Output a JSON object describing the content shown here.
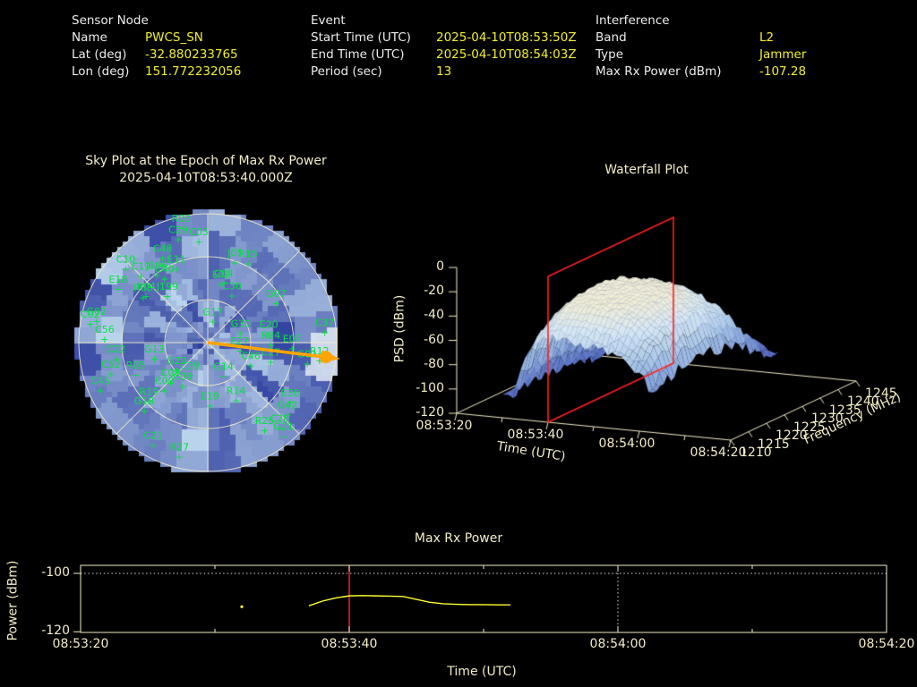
{
  "header": {
    "sensor": {
      "title": "Sensor Node",
      "rows": [
        {
          "label": "Name",
          "value": "PWCS_SN"
        },
        {
          "label": "Lat (deg)",
          "value": "-32.880233765"
        },
        {
          "label": "Lon (deg)",
          "value": "151.772232056"
        }
      ]
    },
    "event": {
      "title": "Event",
      "rows": [
        {
          "label": "Start Time (UTC)",
          "value": "2025-04-10T08:53:50Z"
        },
        {
          "label": "End Time (UTC)",
          "value": "2025-04-10T08:54:03Z"
        },
        {
          "label": "Period (sec)",
          "value": "13"
        }
      ]
    },
    "interference": {
      "title": "Interference",
      "rows": [
        {
          "label": "Band",
          "value": "L2"
        },
        {
          "label": "Type",
          "value": "Jammer"
        },
        {
          "label": "Max Rx Power (dBm)",
          "value": "-107.28"
        }
      ]
    }
  },
  "colors": {
    "background": "#000000",
    "header_label": "#ededed",
    "value_yellow": "#f0ef2d",
    "axis_cream": "#f2ecc6",
    "grid_dotted": "#dcdcdc",
    "satellite_green": "#00e43c",
    "arrow_orange": "#ffa500",
    "epoch_red": "#ff2020",
    "trace_yellow": "#ffff2e",
    "heat_dark_blue": "#27379b",
    "heat_light_blue": "#b9d3ec",
    "surface_low": "#3d51a8",
    "surface_high": "#f6f2e0"
  },
  "chart_data": [
    {
      "name": "sky_plot",
      "type": "heatmap",
      "title": "Sky Plot at the Epoch of Max Rx Power",
      "subtitle": "2025-04-10T08:53:40.000Z",
      "projection": "polar-skyplot",
      "elevation_rings_deg": [
        0,
        30,
        60
      ],
      "azimuth_spoke_step_deg": 45,
      "marker_symbol": "+",
      "interference_azimuth_deg": 97,
      "bright_patch": {
        "azimuth_deg": 96,
        "elevation_deg": 8
      },
      "satellites": [
        [
          "R03",
          347,
          8
        ],
        [
          "C29",
          344,
          15
        ],
        [
          "C05",
          355,
          19
        ],
        [
          "C48",
          332,
          23
        ],
        [
          "C10",
          312,
          13
        ],
        [
          "E11",
          337,
          34
        ],
        [
          "J196",
          323,
          31
        ],
        [
          "C19",
          315,
          24
        ],
        [
          "C40",
          326,
          36
        ],
        [
          "E18",
          301,
          17
        ],
        [
          "R04",
          307,
          36
        ],
        [
          "J199",
          319,
          47
        ],
        [
          "R08",
          305,
          35
        ],
        [
          "C04",
          15,
          47
        ],
        [
          "E02",
          13,
          48
        ],
        [
          "C30",
          27,
          53
        ],
        [
          "J05",
          19,
          31
        ],
        [
          "R15",
          27,
          28
        ],
        [
          "G07",
          60,
          35
        ],
        [
          "C02",
          279,
          7
        ],
        [
          "G02",
          281,
          11
        ],
        [
          "C56",
          272,
          18
        ],
        [
          "C37",
          85,
          8
        ],
        [
          "G17",
          14,
          75
        ],
        [
          "G30",
          74,
          66
        ],
        [
          "E20",
          82,
          47
        ],
        [
          "R24",
          92,
          46
        ],
        [
          "E07",
          94,
          31
        ],
        [
          "E27",
          104,
          67
        ],
        [
          "C22",
          260,
          25
        ],
        [
          "G13",
          253,
          51
        ],
        [
          "C27",
          107,
          44
        ],
        [
          "C46",
          118,
          56
        ],
        [
          "G01",
          102,
          19
        ],
        [
          "R12",
          99,
          11
        ],
        [
          "C52",
          252,
          19
        ],
        [
          "R05",
          246,
          35
        ],
        [
          "G23",
          228,
          61
        ],
        [
          "C39",
          209,
          64
        ],
        [
          "C45",
          246,
          8
        ],
        [
          "C08",
          223,
          52
        ],
        [
          "C06",
          210,
          55
        ],
        [
          "C00",
          222,
          45
        ],
        [
          "G14",
          155,
          64
        ],
        [
          "R19",
          225,
          32
        ],
        [
          "G18",
          223,
          25
        ],
        [
          "E19",
          178,
          46
        ],
        [
          "R14",
          154,
          45
        ],
        [
          "E30",
          126,
          19
        ],
        [
          "G42",
          132,
          15
        ],
        [
          "C28",
          140,
          12
        ],
        [
          "G21",
          141,
          6
        ],
        [
          "R25",
          147,
          17
        ],
        [
          "C21",
          208,
          9
        ],
        [
          "R27",
          194,
          8
        ]
      ]
    },
    {
      "name": "waterfall",
      "type": "heatmap",
      "title": "Waterfall Plot",
      "xlabel": "Time (UTC)",
      "ylabel": "Frequency (MHz)",
      "zlabel": "PSD (dBm)",
      "zlim": [
        -120,
        0
      ],
      "z_ticks": [
        0,
        -20,
        -40,
        -60,
        -80,
        -100,
        -120
      ],
      "time_start": "08:53:20",
      "time_tick_offsets_s": [
        0,
        20,
        40,
        60
      ],
      "time_tick_labels": [
        "08:53:20",
        "08:53:40",
        "08:54:00",
        "08:54:20"
      ],
      "time_minor_tick_offsets_s": [
        10,
        30,
        50
      ],
      "freq_ticks_mhz": [
        1210,
        1215,
        1220,
        1225,
        1230,
        1235,
        1240,
        1245
      ],
      "epoch_plane_time": "08:53:40",
      "epoch_plane_offset_s": 20,
      "time_offsets_s": [
        10,
        13,
        16,
        20,
        25,
        30,
        35,
        40,
        43
      ],
      "frequencies_mhz": [
        1210,
        1215,
        1220,
        1225,
        1230,
        1235,
        1240,
        1245
      ],
      "psd_dbm": [
        [
          -105,
          -102,
          -100,
          -101,
          -103,
          -105,
          -107,
          -110
        ],
        [
          -95,
          -85,
          -80,
          -82,
          -88,
          -95,
          -101,
          -108
        ],
        [
          -60,
          -45,
          -38,
          -36,
          -40,
          -55,
          -85,
          -100
        ],
        [
          -50,
          -32,
          -27,
          -26,
          -29,
          -38,
          -72,
          -92
        ],
        [
          -52,
          -30,
          -26,
          -25,
          -28,
          -36,
          -70,
          -90
        ],
        [
          -55,
          -32,
          -27,
          -26,
          -30,
          -40,
          -72,
          -92
        ],
        [
          -60,
          -40,
          -33,
          -31,
          -36,
          -48,
          -78,
          -95
        ],
        [
          -72,
          -55,
          -48,
          -46,
          -52,
          -62,
          -85,
          -100
        ],
        [
          -90,
          -80,
          -75,
          -74,
          -78,
          -85,
          -95,
          -106
        ]
      ]
    },
    {
      "name": "max_rx_power",
      "type": "line",
      "title": "Max Rx Power",
      "xlabel": "Time (UTC)",
      "ylabel": "Power (dBm)",
      "ylim": [
        -120.5,
        -97.2
      ],
      "y_ticks": [
        -100,
        -120
      ],
      "time_start": "08:53:20",
      "x_tick_offsets_s": [
        0,
        20,
        40,
        60
      ],
      "x_tick_labels": [
        "08:53:20",
        "08:53:40",
        "08:54:00",
        "08:54:20"
      ],
      "x_minor_tick_offsets_s": [
        10,
        30,
        50
      ],
      "y_gridline_dbm": -100,
      "x_gridline_offset_s": 40,
      "epoch_line_offset_s": 20,
      "series": {
        "t_offsets_s": [
          17,
          18,
          19,
          20,
          21,
          22,
          23,
          24,
          25,
          26,
          27,
          28,
          29,
          30,
          31,
          32
        ],
        "power_dbm": [
          -111.1,
          -109.5,
          -108.4,
          -107.7,
          -107.6,
          -107.7,
          -107.8,
          -107.9,
          -108.9,
          -109.9,
          -110.4,
          -110.6,
          -110.7,
          -110.7,
          -110.8,
          -110.8
        ]
      },
      "isolated_point": {
        "t_offset_s": 12,
        "power_dbm": -111.4
      }
    }
  ]
}
